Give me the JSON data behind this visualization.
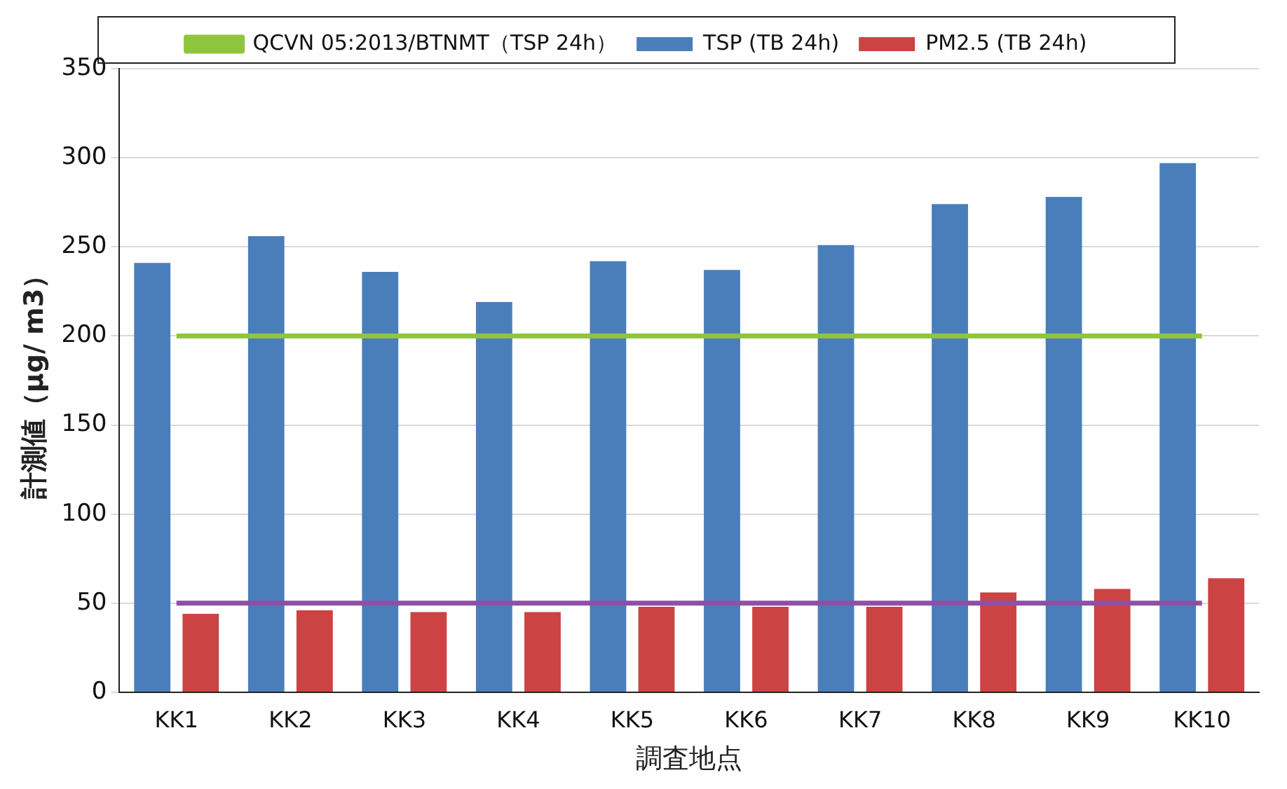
{
  "chart_data": {
    "type": "bar",
    "xlabel": "調査地点",
    "ylabel": "計測値（µg/ m3）",
    "categories": [
      "KK1",
      "KK2",
      "KK3",
      "KK4",
      "KK5",
      "KK6",
      "KK7",
      "KK8",
      "KK9",
      "KK10"
    ],
    "series": [
      {
        "name": "TSP (TB 24h)",
        "color": "#4a7ebb",
        "values": [
          241,
          256,
          236,
          219,
          242,
          237,
          251,
          274,
          278,
          297
        ]
      },
      {
        "name": "PM2.5 (TB 24h)",
        "color": "#cb4343",
        "values": [
          44,
          46,
          45,
          45,
          48,
          48,
          48,
          56,
          58,
          64
        ]
      },
      {
        "name": "QCVN 05:2013/BTNMT（TSP 24h）",
        "type": "line",
        "color": "#8fc53e",
        "values": [
          200,
          200,
          200,
          200,
          200,
          200,
          200,
          200,
          200,
          200
        ]
      },
      {
        "type": "line",
        "color": "#8e4fa6",
        "values": [
          50,
          50,
          50,
          50,
          50,
          50,
          50,
          50,
          50,
          50
        ]
      }
    ],
    "ylim": [
      0,
      350
    ],
    "yticks": [
      0,
      50,
      100,
      150,
      200,
      250,
      300,
      350
    ],
    "grid": "y",
    "legend": "top",
    "marker": "none"
  }
}
